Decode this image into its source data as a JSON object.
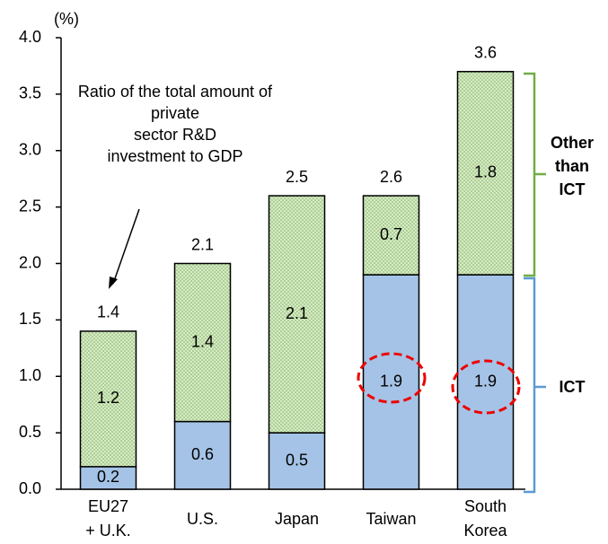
{
  "chart_data": {
    "type": "stacked_bar",
    "y_unit": "(%)",
    "categories": [
      "EU27\n+ U.K.",
      "U.S.",
      "Japan",
      "Taiwan",
      "South\nKorea"
    ],
    "series": [
      {
        "name": "ICT",
        "color": "#a5c3e6",
        "values": [
          0.2,
          0.6,
          0.5,
          1.9,
          1.9
        ]
      },
      {
        "name": "Other\nthan\nICT",
        "color": "#d3e8c3",
        "values": [
          1.2,
          1.4,
          2.1,
          0.7,
          1.8
        ]
      }
    ],
    "totals": [
      1.4,
      2.1,
      2.5,
      2.6,
      3.6
    ],
    "annotation": "Ratio of the total amount of private\nsector R&D\ninvestment to GDP",
    "ylim": [
      0,
      4
    ],
    "yticks": [
      {
        "value": 0,
        "label": "0.0"
      },
      0.5,
      {
        "value": 1,
        "label": "1.0"
      },
      1.5,
      {
        "value": 2,
        "label": "2.0"
      },
      2.5,
      {
        "value": 3,
        "label": "3.0"
      },
      3.5,
      {
        "value": 4,
        "label": "4.0"
      }
    ]
  }
}
